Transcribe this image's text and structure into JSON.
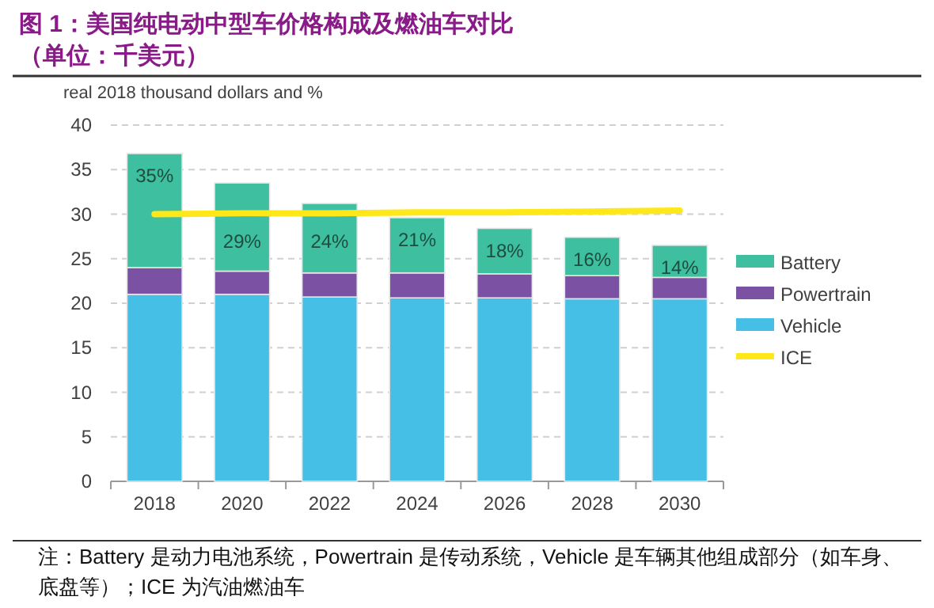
{
  "chart_data": {
    "type": "bar",
    "stacked": true,
    "title": "图 1：美国纯电动中型车价格构成及燃油车对比",
    "subtitle": "（单位：千美元）",
    "ylabel": "real 2018 thousand dollars and %",
    "categories": [
      "2018",
      "2020",
      "2022",
      "2024",
      "2026",
      "2028",
      "2030"
    ],
    "series": [
      {
        "name": "Vehicle",
        "color": "#45bfe6",
        "values": [
          21.0,
          21.0,
          20.7,
          20.6,
          20.6,
          20.5,
          20.5
        ]
      },
      {
        "name": "Powertrain",
        "color": "#7b52a3",
        "values": [
          3.0,
          2.6,
          2.7,
          2.8,
          2.7,
          2.6,
          2.4
        ]
      },
      {
        "name": "Battery",
        "color": "#3dbfa0",
        "values": [
          12.8,
          9.9,
          7.8,
          6.2,
          5.1,
          4.3,
          3.6
        ]
      },
      {
        "name": "ICE",
        "type": "line",
        "color": "#ffe81a",
        "values": [
          30.0,
          30.1,
          30.1,
          30.2,
          30.2,
          30.3,
          30.4
        ]
      }
    ],
    "ylim": [
      0,
      40
    ],
    "yticks": [
      0,
      5,
      10,
      15,
      20,
      25,
      30,
      35,
      40
    ],
    "grid": "y",
    "legend": "right",
    "annotations": [
      {
        "text": "35%",
        "x": "2018",
        "y": 36.8
      },
      {
        "text": "29%",
        "x": "2020",
        "y": 33.5
      },
      {
        "text": "24%",
        "x": "2022",
        "y": 31.2
      },
      {
        "text": "21%",
        "x": "2024",
        "y": 29.6
      },
      {
        "text": "18%",
        "x": "2026",
        "y": 28.4
      },
      {
        "text": "16%",
        "x": "2028",
        "y": 27.4
      },
      {
        "text": "14%",
        "x": "2030",
        "y": 26.5
      },
      "注：Battery 是动力电池系统，Powertrain 是传动系统，Vehicle 是车辆其他组成部分（如车身、底盘等）；ICE 为汽油燃油车"
    ]
  }
}
